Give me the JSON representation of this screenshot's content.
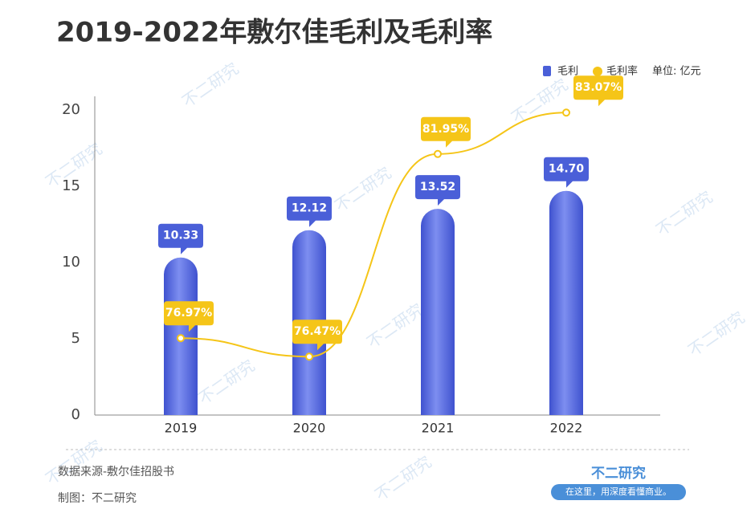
{
  "chart_data": {
    "type": "bar-line",
    "title": "2019-2022年敷尔佳毛利及毛利率",
    "unit": "单位: 亿元",
    "categories": [
      "2019",
      "2020",
      "2021",
      "2022"
    ],
    "series": [
      {
        "name": "毛利",
        "color": "#4a5fd8",
        "values": [
          10.33,
          12.12,
          13.52,
          14.7
        ],
        "value_labels": [
          "10.33",
          "12.12",
          "13.52",
          "14.70"
        ]
      },
      {
        "name": "毛利率",
        "color": "#f5c518",
        "axis": "y2",
        "values": [
          76.97,
          76.47,
          81.95,
          83.07
        ],
        "value_labels": [
          "76.97%",
          "76.47%",
          "81.95%",
          "83.07%"
        ]
      }
    ],
    "ylim": [
      0,
      20
    ],
    "yticks": [
      0,
      5,
      10,
      15,
      20
    ],
    "y2lim": [
      74.89,
      83.14
    ],
    "source": "数据来源-敷尔佳招股书",
    "credit": "制图：不二研究",
    "watermark": "不二研究",
    "brand": "不二研究",
    "slogan": "在这里，用深度看懂商业。"
  }
}
